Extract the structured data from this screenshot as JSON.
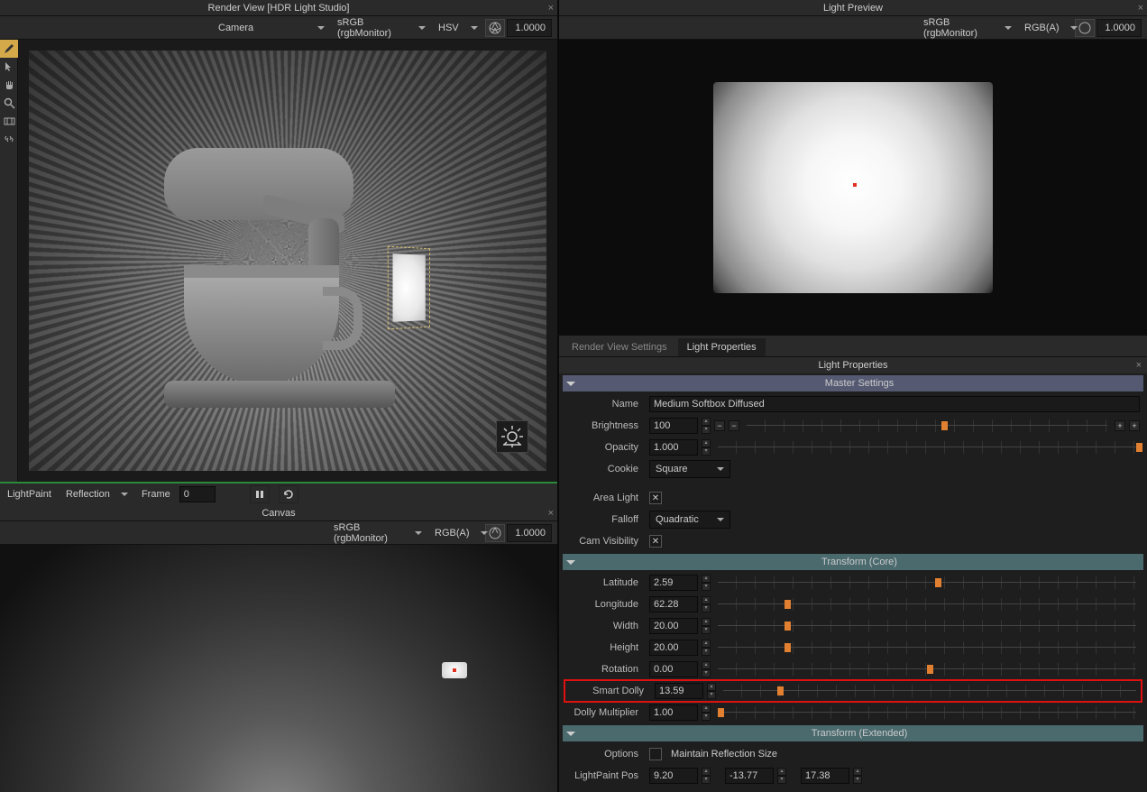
{
  "render_view": {
    "title": "Render View [HDR Light Studio]",
    "camera": "Camera",
    "colorspace": "sRGB (rgbMonitor)",
    "mode": "HSV",
    "exposure": "1.0000",
    "lightpaint_label": "LightPaint",
    "lightpaint_mode": "Reflection",
    "frame_label": "Frame",
    "frame_value": "0"
  },
  "light_preview": {
    "title": "Light Preview",
    "colorspace": "sRGB (rgbMonitor)",
    "mode": "RGB(A)",
    "exposure": "1.0000"
  },
  "canvas": {
    "title": "Canvas",
    "colorspace": "sRGB (rgbMonitor)",
    "mode": "RGB(A)",
    "exposure": "1.0000"
  },
  "tabs": {
    "t1": "Render View Settings",
    "t2": "Light Properties"
  },
  "props": {
    "panel_title": "Light Properties",
    "master": {
      "header": "Master Settings",
      "name_label": "Name",
      "name_value": "Medium Softbox Diffused",
      "brightness_label": "Brightness",
      "brightness_value": "100",
      "brightness_pct": 54,
      "opacity_label": "Opacity",
      "opacity_value": "1.000",
      "opacity_pct": 100,
      "cookie_label": "Cookie",
      "cookie_value": "Square",
      "area_label": "Area Light",
      "falloff_label": "Falloff",
      "falloff_value": "Quadratic",
      "camvis_label": "Cam Visibility"
    },
    "core": {
      "header": "Transform (Core)",
      "latitude_label": "Latitude",
      "latitude_value": "2.59",
      "latitude_pct": 52,
      "longitude_label": "Longitude",
      "longitude_value": "62.28",
      "longitude_pct": 16,
      "width_label": "Width",
      "width_value": "20.00",
      "width_pct": 16,
      "height_label": "Height",
      "height_value": "20.00",
      "height_pct": 16,
      "rotation_label": "Rotation",
      "rotation_value": "0.00",
      "rotation_pct": 50,
      "smartdolly_label": "Smart Dolly",
      "smartdolly_value": "13.59",
      "smartdolly_pct": 13,
      "dollymult_label": "Dolly Multiplier",
      "dollymult_value": "1.00",
      "dollymult_pct": 0
    },
    "ext": {
      "header": "Transform (Extended)",
      "options_label": "Options",
      "maintain_label": "Maintain Reflection Size",
      "lpp_label": "LightPaint Pos",
      "lpp_x": "9.20",
      "lpp_y": "-13.77",
      "lpp_z": "17.38"
    }
  }
}
